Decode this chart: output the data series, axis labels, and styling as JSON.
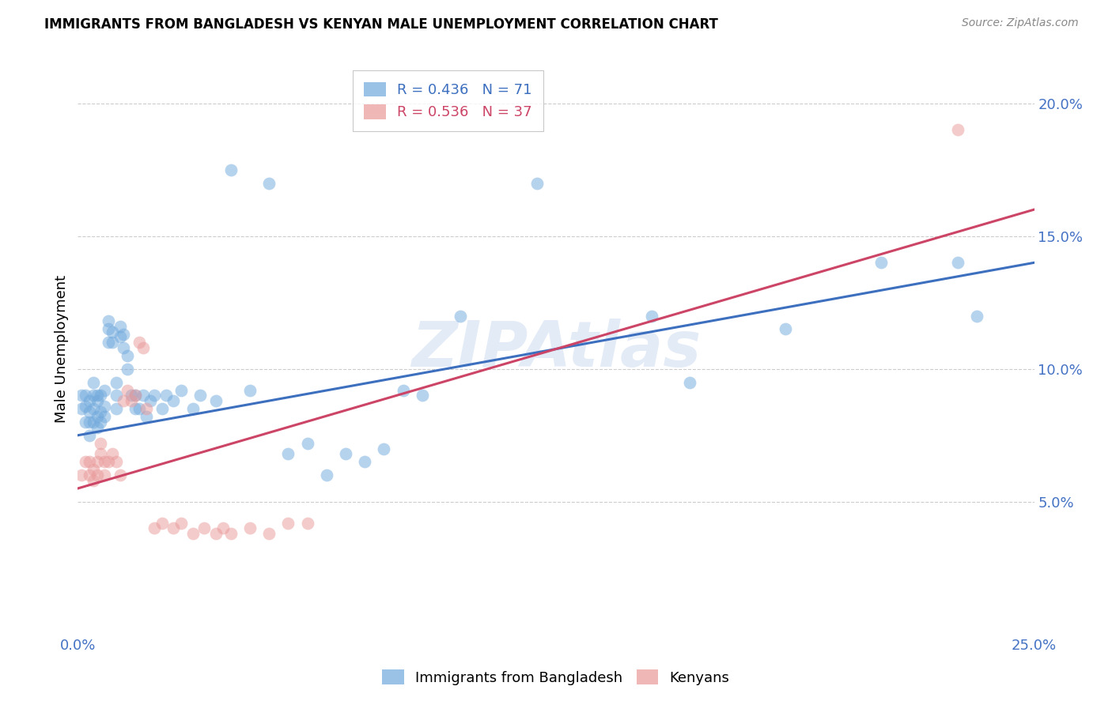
{
  "title": "IMMIGRANTS FROM BANGLADESH VS KENYAN MALE UNEMPLOYMENT CORRELATION CHART",
  "source": "Source: ZipAtlas.com",
  "ylabel": "Male Unemployment",
  "xlim": [
    0.0,
    0.25
  ],
  "ylim": [
    0.0,
    0.215
  ],
  "xticks": [
    0.0,
    0.05,
    0.1,
    0.15,
    0.2,
    0.25
  ],
  "yticks": [
    0.05,
    0.1,
    0.15,
    0.2
  ],
  "xtick_labels": [
    "0.0%",
    "",
    "",
    "",
    "",
    "25.0%"
  ],
  "ytick_labels": [
    "5.0%",
    "10.0%",
    "15.0%",
    "20.0%"
  ],
  "blue_R": "0.436",
  "blue_N": "71",
  "pink_R": "0.536",
  "pink_N": "37",
  "blue_color": "#6fa8dc",
  "pink_color": "#ea9999",
  "blue_line_color": "#3d6fbf",
  "pink_line_color": "#cc4466",
  "blue_scatter_x": [
    0.001,
    0.001,
    0.002,
    0.002,
    0.002,
    0.003,
    0.003,
    0.003,
    0.003,
    0.004,
    0.004,
    0.004,
    0.004,
    0.005,
    0.005,
    0.005,
    0.005,
    0.006,
    0.006,
    0.006,
    0.007,
    0.007,
    0.007,
    0.008,
    0.008,
    0.008,
    0.009,
    0.009,
    0.01,
    0.01,
    0.01,
    0.011,
    0.011,
    0.012,
    0.012,
    0.013,
    0.013,
    0.014,
    0.015,
    0.015,
    0.016,
    0.017,
    0.018,
    0.019,
    0.02,
    0.022,
    0.023,
    0.025,
    0.027,
    0.03,
    0.032,
    0.036,
    0.04,
    0.045,
    0.05,
    0.055,
    0.06,
    0.065,
    0.07,
    0.075,
    0.08,
    0.085,
    0.09,
    0.1,
    0.12,
    0.15,
    0.16,
    0.185,
    0.21,
    0.23,
    0.235
  ],
  "blue_scatter_y": [
    0.09,
    0.085,
    0.08,
    0.086,
    0.09,
    0.075,
    0.08,
    0.084,
    0.088,
    0.08,
    0.085,
    0.09,
    0.095,
    0.078,
    0.082,
    0.088,
    0.09,
    0.08,
    0.084,
    0.09,
    0.082,
    0.086,
    0.092,
    0.11,
    0.115,
    0.118,
    0.11,
    0.114,
    0.085,
    0.09,
    0.095,
    0.112,
    0.116,
    0.108,
    0.113,
    0.1,
    0.105,
    0.09,
    0.085,
    0.09,
    0.085,
    0.09,
    0.082,
    0.088,
    0.09,
    0.085,
    0.09,
    0.088,
    0.092,
    0.085,
    0.09,
    0.088,
    0.175,
    0.092,
    0.17,
    0.068,
    0.072,
    0.06,
    0.068,
    0.065,
    0.07,
    0.092,
    0.09,
    0.12,
    0.17,
    0.12,
    0.095,
    0.115,
    0.14,
    0.14,
    0.12
  ],
  "pink_scatter_x": [
    0.001,
    0.002,
    0.003,
    0.003,
    0.004,
    0.004,
    0.005,
    0.005,
    0.006,
    0.006,
    0.007,
    0.007,
    0.008,
    0.009,
    0.01,
    0.011,
    0.012,
    0.013,
    0.014,
    0.015,
    0.016,
    0.017,
    0.018,
    0.02,
    0.022,
    0.025,
    0.027,
    0.03,
    0.033,
    0.036,
    0.038,
    0.04,
    0.045,
    0.05,
    0.055,
    0.06,
    0.23
  ],
  "pink_scatter_y": [
    0.06,
    0.065,
    0.06,
    0.065,
    0.058,
    0.062,
    0.06,
    0.065,
    0.068,
    0.072,
    0.06,
    0.065,
    0.065,
    0.068,
    0.065,
    0.06,
    0.088,
    0.092,
    0.088,
    0.09,
    0.11,
    0.108,
    0.085,
    0.04,
    0.042,
    0.04,
    0.042,
    0.038,
    0.04,
    0.038,
    0.04,
    0.038,
    0.04,
    0.038,
    0.042,
    0.042,
    0.19
  ],
  "blue_line_x": [
    0.0,
    0.25
  ],
  "blue_line_y": [
    0.075,
    0.14
  ],
  "pink_line_x": [
    0.0,
    0.25
  ],
  "pink_line_y": [
    0.055,
    0.16
  ]
}
